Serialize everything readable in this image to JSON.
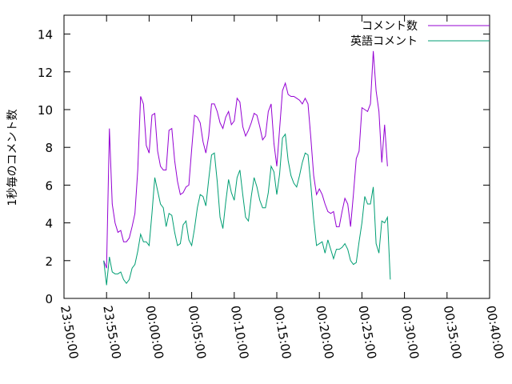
{
  "chart_data": {
    "type": "line",
    "title": "",
    "xlabel": "",
    "ylabel": "1秒毎のコメント数",
    "legend_position": "top-right",
    "grid": false,
    "ylim": [
      0,
      15
    ],
    "y_ticks": [
      0,
      2,
      4,
      6,
      8,
      10,
      12,
      14
    ],
    "xlim": [
      "23:50:00",
      "00:40:00"
    ],
    "x_ticks": [
      "23:50:00",
      "23:55:00",
      "00:00:00",
      "00:05:00",
      "00:10:00",
      "00:15:00",
      "00:20:00",
      "00:25:00",
      "00:30:00",
      "00:35:00",
      "00:40:00"
    ],
    "series": [
      {
        "name": "コメント数",
        "color": "#9400d3",
        "points": [
          [
            "23:54:40",
            2.0
          ],
          [
            "23:55:00",
            1.6
          ],
          [
            "23:55:20",
            9.0
          ],
          [
            "23:55:40",
            5.0
          ],
          [
            "23:56:00",
            4.0
          ],
          [
            "23:56:20",
            3.5
          ],
          [
            "23:56:40",
            3.6
          ],
          [
            "23:57:00",
            3.0
          ],
          [
            "23:57:20",
            3.0
          ],
          [
            "23:57:40",
            3.2
          ],
          [
            "23:58:00",
            3.8
          ],
          [
            "23:58:20",
            4.5
          ],
          [
            "23:58:40",
            6.8
          ],
          [
            "23:59:00",
            10.7
          ],
          [
            "23:59:20",
            10.3
          ],
          [
            "23:59:40",
            8.1
          ],
          [
            "00:00:00",
            7.7
          ],
          [
            "00:00:20",
            9.7
          ],
          [
            "00:00:40",
            9.8
          ],
          [
            "00:01:00",
            7.8
          ],
          [
            "00:01:20",
            7.0
          ],
          [
            "00:01:40",
            6.8
          ],
          [
            "00:02:00",
            6.8
          ],
          [
            "00:02:20",
            8.9
          ],
          [
            "00:02:40",
            9.0
          ],
          [
            "00:03:00",
            7.3
          ],
          [
            "00:03:20",
            6.2
          ],
          [
            "00:03:40",
            5.5
          ],
          [
            "00:04:00",
            5.6
          ],
          [
            "00:04:20",
            5.9
          ],
          [
            "00:04:40",
            6.0
          ],
          [
            "00:05:00",
            7.9
          ],
          [
            "00:05:20",
            9.7
          ],
          [
            "00:05:40",
            9.6
          ],
          [
            "00:06:00",
            9.3
          ],
          [
            "00:06:20",
            8.3
          ],
          [
            "00:06:40",
            7.7
          ],
          [
            "00:07:00",
            8.6
          ],
          [
            "00:07:20",
            10.3
          ],
          [
            "00:07:40",
            10.3
          ],
          [
            "00:08:00",
            9.9
          ],
          [
            "00:08:20",
            9.3
          ],
          [
            "00:08:40",
            9.0
          ],
          [
            "00:09:00",
            9.6
          ],
          [
            "00:09:20",
            9.9
          ],
          [
            "00:09:40",
            9.2
          ],
          [
            "00:10:00",
            9.4
          ],
          [
            "00:10:20",
            10.6
          ],
          [
            "00:10:40",
            10.4
          ],
          [
            "00:11:00",
            9.1
          ],
          [
            "00:11:20",
            8.6
          ],
          [
            "00:11:40",
            8.9
          ],
          [
            "00:12:00",
            9.3
          ],
          [
            "00:12:20",
            9.8
          ],
          [
            "00:12:40",
            9.7
          ],
          [
            "00:13:00",
            9.1
          ],
          [
            "00:13:20",
            8.4
          ],
          [
            "00:13:40",
            8.6
          ],
          [
            "00:14:00",
            9.9
          ],
          [
            "00:14:20",
            10.3
          ],
          [
            "00:14:40",
            8.2
          ],
          [
            "00:15:00",
            7.0
          ],
          [
            "00:15:20",
            9.0
          ],
          [
            "00:15:40",
            11.0
          ],
          [
            "00:16:00",
            11.4
          ],
          [
            "00:16:20",
            10.8
          ],
          [
            "00:16:40",
            10.7
          ],
          [
            "00:17:00",
            10.7
          ],
          [
            "00:17:20",
            10.6
          ],
          [
            "00:17:40",
            10.5
          ],
          [
            "00:18:00",
            10.3
          ],
          [
            "00:18:20",
            10.6
          ],
          [
            "00:18:40",
            10.3
          ],
          [
            "00:19:00",
            8.5
          ],
          [
            "00:19:20",
            6.5
          ],
          [
            "00:19:40",
            5.5
          ],
          [
            "00:20:00",
            5.8
          ],
          [
            "00:20:20",
            5.5
          ],
          [
            "00:20:40",
            5.0
          ],
          [
            "00:21:00",
            4.6
          ],
          [
            "00:21:20",
            4.5
          ],
          [
            "00:21:40",
            4.6
          ],
          [
            "00:22:00",
            3.8
          ],
          [
            "00:22:20",
            3.8
          ],
          [
            "00:22:40",
            4.6
          ],
          [
            "00:23:00",
            5.3
          ],
          [
            "00:23:20",
            5.0
          ],
          [
            "00:23:40",
            3.8
          ],
          [
            "00:24:00",
            5.5
          ],
          [
            "00:24:20",
            7.4
          ],
          [
            "00:24:40",
            7.8
          ],
          [
            "00:25:00",
            10.1
          ],
          [
            "00:25:20",
            10.0
          ],
          [
            "00:25:40",
            9.9
          ],
          [
            "00:26:00",
            10.3
          ],
          [
            "00:26:20",
            13.1
          ],
          [
            "00:26:40",
            11.0
          ],
          [
            "00:27:00",
            9.9
          ],
          [
            "00:27:20",
            7.2
          ],
          [
            "00:27:40",
            9.2
          ],
          [
            "00:28:00",
            7.0
          ]
        ]
      },
      {
        "name": "英語コメント",
        "color": "#009e73",
        "points": [
          [
            "23:54:40",
            2.0
          ],
          [
            "23:55:00",
            0.7
          ],
          [
            "23:55:20",
            2.2
          ],
          [
            "23:55:40",
            1.4
          ],
          [
            "23:56:00",
            1.3
          ],
          [
            "23:56:20",
            1.3
          ],
          [
            "23:56:40",
            1.4
          ],
          [
            "23:57:00",
            1.0
          ],
          [
            "23:57:20",
            0.8
          ],
          [
            "23:57:40",
            1.0
          ],
          [
            "23:58:00",
            1.6
          ],
          [
            "23:58:20",
            1.8
          ],
          [
            "23:58:40",
            2.5
          ],
          [
            "23:59:00",
            3.4
          ],
          [
            "23:59:20",
            3.0
          ],
          [
            "23:59:40",
            3.0
          ],
          [
            "00:00:00",
            2.8
          ],
          [
            "00:00:20",
            4.5
          ],
          [
            "00:00:40",
            6.4
          ],
          [
            "00:01:00",
            5.7
          ],
          [
            "00:01:20",
            5.0
          ],
          [
            "00:01:40",
            4.8
          ],
          [
            "00:02:00",
            3.8
          ],
          [
            "00:02:20",
            4.5
          ],
          [
            "00:02:40",
            4.4
          ],
          [
            "00:03:00",
            3.5
          ],
          [
            "00:03:20",
            2.8
          ],
          [
            "00:03:40",
            2.9
          ],
          [
            "00:04:00",
            3.9
          ],
          [
            "00:04:20",
            4.1
          ],
          [
            "00:04:40",
            3.1
          ],
          [
            "00:05:00",
            2.8
          ],
          [
            "00:05:20",
            3.7
          ],
          [
            "00:05:40",
            4.8
          ],
          [
            "00:06:00",
            5.5
          ],
          [
            "00:06:20",
            5.4
          ],
          [
            "00:06:40",
            4.9
          ],
          [
            "00:07:00",
            6.3
          ],
          [
            "00:07:20",
            7.6
          ],
          [
            "00:07:40",
            7.7
          ],
          [
            "00:08:00",
            6.2
          ],
          [
            "00:08:20",
            4.3
          ],
          [
            "00:08:40",
            3.7
          ],
          [
            "00:09:00",
            5.1
          ],
          [
            "00:09:20",
            6.3
          ],
          [
            "00:09:40",
            5.6
          ],
          [
            "00:10:00",
            5.2
          ],
          [
            "00:10:20",
            6.4
          ],
          [
            "00:10:40",
            6.8
          ],
          [
            "00:11:00",
            5.5
          ],
          [
            "00:11:20",
            4.3
          ],
          [
            "00:11:40",
            4.1
          ],
          [
            "00:12:00",
            5.4
          ],
          [
            "00:12:20",
            6.4
          ],
          [
            "00:12:40",
            5.9
          ],
          [
            "00:13:00",
            5.2
          ],
          [
            "00:13:20",
            4.8
          ],
          [
            "00:13:40",
            4.8
          ],
          [
            "00:14:00",
            5.6
          ],
          [
            "00:14:20",
            7.0
          ],
          [
            "00:14:40",
            6.7
          ],
          [
            "00:15:00",
            5.5
          ],
          [
            "00:15:20",
            6.6
          ],
          [
            "00:15:40",
            8.5
          ],
          [
            "00:16:00",
            8.7
          ],
          [
            "00:16:20",
            7.3
          ],
          [
            "00:16:40",
            6.5
          ],
          [
            "00:17:00",
            6.1
          ],
          [
            "00:17:20",
            5.9
          ],
          [
            "00:17:40",
            6.5
          ],
          [
            "00:18:00",
            7.2
          ],
          [
            "00:18:20",
            7.7
          ],
          [
            "00:18:40",
            7.6
          ],
          [
            "00:19:00",
            6.0
          ],
          [
            "00:19:20",
            4.2
          ],
          [
            "00:19:40",
            2.8
          ],
          [
            "00:20:00",
            2.9
          ],
          [
            "00:20:20",
            3.0
          ],
          [
            "00:20:40",
            2.4
          ],
          [
            "00:21:00",
            3.1
          ],
          [
            "00:21:20",
            2.6
          ],
          [
            "00:21:40",
            2.1
          ],
          [
            "00:22:00",
            2.6
          ],
          [
            "00:22:20",
            2.6
          ],
          [
            "00:22:40",
            2.7
          ],
          [
            "00:23:00",
            2.9
          ],
          [
            "00:23:20",
            2.6
          ],
          [
            "00:23:40",
            2.0
          ],
          [
            "00:24:00",
            1.8
          ],
          [
            "00:24:20",
            1.9
          ],
          [
            "00:24:40",
            3.0
          ],
          [
            "00:25:00",
            4.0
          ],
          [
            "00:25:20",
            5.4
          ],
          [
            "00:25:40",
            5.0
          ],
          [
            "00:26:00",
            5.0
          ],
          [
            "00:26:20",
            5.9
          ],
          [
            "00:26:40",
            2.9
          ],
          [
            "00:27:00",
            2.4
          ],
          [
            "00:27:20",
            4.1
          ],
          [
            "00:27:40",
            4.0
          ],
          [
            "00:28:00",
            4.3
          ],
          [
            "00:28:20",
            1.0
          ]
        ]
      }
    ]
  }
}
